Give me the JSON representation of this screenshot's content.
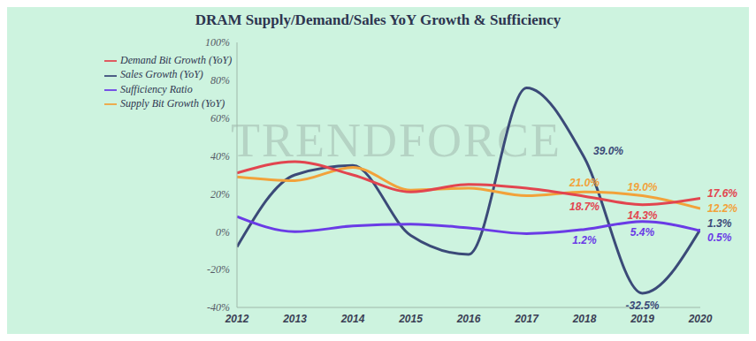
{
  "chart_data": {
    "type": "line",
    "title": "DRAM Supply/Demand/Sales YoY Growth & Sufficiency",
    "annotations": [
      "TRENDFORCE"
    ],
    "x": [
      2012,
      2013,
      2014,
      2015,
      2016,
      2017,
      2018,
      2019,
      2020
    ],
    "xlim": [
      2012,
      2020
    ],
    "xticks": [
      2012,
      2013,
      2014,
      2015,
      2016,
      2017,
      2018,
      2019,
      2020
    ],
    "ylim": [
      -40,
      100
    ],
    "yticks": [
      {
        "value": -40,
        "label": "-40%"
      },
      {
        "value": -20,
        "label": "-20%"
      },
      {
        "value": 0,
        "label": "0%"
      },
      {
        "value": 20,
        "label": "20%"
      },
      {
        "value": 40,
        "label": "40%"
      },
      {
        "value": 60,
        "label": "60%"
      },
      {
        "value": 80,
        "label": "80%"
      },
      {
        "value": 100,
        "label": "100%"
      }
    ],
    "grid": false,
    "legend": "upper left",
    "marker": "none",
    "line_style": "smooth",
    "series": [
      {
        "name": "Sales Growth (YoY)",
        "color": "#3b4a78",
        "values": [
          -8,
          30,
          35,
          -2,
          -12,
          76,
          39.0,
          -32.5,
          1.3
        ],
        "value_labels": [
          null,
          null,
          null,
          null,
          null,
          null,
          "39.0%",
          "-32.5%",
          "1.3%"
        ]
      },
      {
        "name": "Supply Bit Growth (YoY)",
        "color": "#f2a23a",
        "values": [
          29,
          27,
          34,
          22,
          23,
          19,
          21.0,
          19.0,
          12.2
        ],
        "value_labels": [
          null,
          null,
          null,
          null,
          null,
          null,
          "21.0%",
          "19.0%",
          "12.2%"
        ]
      },
      {
        "name": "Demand Bit Growth (YoY)",
        "color": "#e2454f",
        "values": [
          31,
          37,
          30,
          21,
          25,
          23,
          18.7,
          14.3,
          17.6
        ],
        "value_labels": [
          null,
          null,
          null,
          null,
          null,
          null,
          "18.7%",
          "14.3%",
          "17.6%"
        ]
      },
      {
        "name": "Sufficiency Ratio",
        "color": "#6a3be6",
        "values": [
          8,
          0,
          3,
          4,
          2,
          -1,
          1.2,
          5.4,
          0.5
        ],
        "value_labels": [
          null,
          null,
          null,
          null,
          null,
          null,
          "1.2%",
          "5.4%",
          "0.5%"
        ]
      }
    ]
  }
}
